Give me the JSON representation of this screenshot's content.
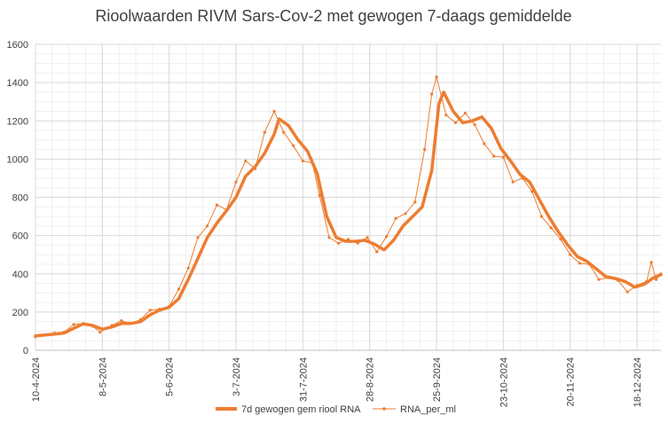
{
  "chart_data": {
    "type": "line",
    "title": "Rioolwaarden RIVM Sars-Cov-2 met gewogen 7-daags gemiddelde",
    "xlabel": "",
    "ylabel": "",
    "ylim": [
      0,
      1600
    ],
    "yticks": [
      0,
      200,
      400,
      600,
      800,
      1000,
      1200,
      1400,
      1600
    ],
    "xlim": [
      "2024-04-10",
      "2024-12-28"
    ],
    "x_tick_labels": [
      "10-4-2024",
      "8-5-2024",
      "5-6-2024",
      "3-7-2024",
      "31-7-2024",
      "28-8-2024",
      "25-9-2024",
      "23-10-2024",
      "20-11-2024",
      "18-12-2024"
    ],
    "grid": true,
    "legend_position": "bottom",
    "colors": {
      "smooth": "#ED7D31",
      "raw": "#ED7D31",
      "grid": "#D9D9D9",
      "minor_grid": "#EFEFEF",
      "text": "#404040"
    },
    "series": [
      {
        "name": "7d gewogen gem riool RNA",
        "style": "thick-line",
        "points": [
          [
            "2024-04-10",
            75
          ],
          [
            "2024-04-14",
            80
          ],
          [
            "2024-04-18",
            85
          ],
          [
            "2024-04-22",
            90
          ],
          [
            "2024-04-26",
            115
          ],
          [
            "2024-04-30",
            138
          ],
          [
            "2024-05-04",
            130
          ],
          [
            "2024-05-08",
            110
          ],
          [
            "2024-05-12",
            122
          ],
          [
            "2024-05-16",
            140
          ],
          [
            "2024-05-20",
            140
          ],
          [
            "2024-05-24",
            150
          ],
          [
            "2024-05-28",
            185
          ],
          [
            "2024-06-01",
            210
          ],
          [
            "2024-06-05",
            225
          ],
          [
            "2024-06-09",
            270
          ],
          [
            "2024-06-13",
            370
          ],
          [
            "2024-06-17",
            480
          ],
          [
            "2024-06-21",
            590
          ],
          [
            "2024-06-25",
            665
          ],
          [
            "2024-06-29",
            730
          ],
          [
            "2024-07-03",
            800
          ],
          [
            "2024-07-07",
            910
          ],
          [
            "2024-07-11",
            960
          ],
          [
            "2024-07-15",
            1030
          ],
          [
            "2024-07-19",
            1130
          ],
          [
            "2024-07-21",
            1210
          ],
          [
            "2024-07-25",
            1175
          ],
          [
            "2024-07-29",
            1100
          ],
          [
            "2024-08-02",
            1040
          ],
          [
            "2024-08-06",
            925
          ],
          [
            "2024-08-10",
            700
          ],
          [
            "2024-08-14",
            590
          ],
          [
            "2024-08-18",
            570
          ],
          [
            "2024-08-22",
            570
          ],
          [
            "2024-08-26",
            575
          ],
          [
            "2024-08-30",
            555
          ],
          [
            "2024-09-03",
            525
          ],
          [
            "2024-09-07",
            575
          ],
          [
            "2024-09-11",
            650
          ],
          [
            "2024-09-15",
            700
          ],
          [
            "2024-09-19",
            750
          ],
          [
            "2024-09-23",
            940
          ],
          [
            "2024-09-26",
            1290
          ],
          [
            "2024-09-28",
            1350
          ],
          [
            "2024-10-02",
            1250
          ],
          [
            "2024-10-06",
            1190
          ],
          [
            "2024-10-10",
            1200
          ],
          [
            "2024-10-14",
            1220
          ],
          [
            "2024-10-18",
            1160
          ],
          [
            "2024-10-22",
            1055
          ],
          [
            "2024-10-26",
            990
          ],
          [
            "2024-10-30",
            920
          ],
          [
            "2024-11-03",
            880
          ],
          [
            "2024-11-07",
            790
          ],
          [
            "2024-11-11",
            700
          ],
          [
            "2024-11-15",
            620
          ],
          [
            "2024-11-19",
            550
          ],
          [
            "2024-11-23",
            490
          ],
          [
            "2024-11-27",
            465
          ],
          [
            "2024-12-01",
            425
          ],
          [
            "2024-12-05",
            385
          ],
          [
            "2024-12-09",
            375
          ],
          [
            "2024-12-13",
            360
          ],
          [
            "2024-12-17",
            330
          ],
          [
            "2024-12-21",
            345
          ],
          [
            "2024-12-25",
            380
          ],
          [
            "2024-12-28",
            395
          ]
        ]
      },
      {
        "name": "RNA_per_ml",
        "style": "thin-line-markers",
        "points": [
          [
            "2024-04-10",
            70
          ],
          [
            "2024-04-14",
            80
          ],
          [
            "2024-04-18",
            90
          ],
          [
            "2024-04-22",
            95
          ],
          [
            "2024-04-26",
            135
          ],
          [
            "2024-04-30",
            140
          ],
          [
            "2024-05-04",
            125
          ],
          [
            "2024-05-07",
            95
          ],
          [
            "2024-05-12",
            130
          ],
          [
            "2024-05-16",
            155
          ],
          [
            "2024-05-20",
            140
          ],
          [
            "2024-05-24",
            160
          ],
          [
            "2024-05-28",
            210
          ],
          [
            "2024-06-01",
            215
          ],
          [
            "2024-06-05",
            230
          ],
          [
            "2024-06-09",
            320
          ],
          [
            "2024-06-13",
            430
          ],
          [
            "2024-06-17",
            590
          ],
          [
            "2024-06-21",
            650
          ],
          [
            "2024-06-25",
            760
          ],
          [
            "2024-06-29",
            735
          ],
          [
            "2024-07-03",
            880
          ],
          [
            "2024-07-07",
            990
          ],
          [
            "2024-07-11",
            950
          ],
          [
            "2024-07-15",
            1140
          ],
          [
            "2024-07-19",
            1250
          ],
          [
            "2024-07-23",
            1140
          ],
          [
            "2024-07-27",
            1070
          ],
          [
            "2024-07-31",
            990
          ],
          [
            "2024-08-04",
            980
          ],
          [
            "2024-08-07",
            810
          ],
          [
            "2024-08-11",
            590
          ],
          [
            "2024-08-15",
            560
          ],
          [
            "2024-08-19",
            580
          ],
          [
            "2024-08-23",
            560
          ],
          [
            "2024-08-27",
            590
          ],
          [
            "2024-08-31",
            515
          ],
          [
            "2024-09-04",
            595
          ],
          [
            "2024-09-08",
            690
          ],
          [
            "2024-09-12",
            715
          ],
          [
            "2024-09-16",
            775
          ],
          [
            "2024-09-20",
            1050
          ],
          [
            "2024-09-23",
            1340
          ],
          [
            "2024-09-25",
            1430
          ],
          [
            "2024-09-29",
            1230
          ],
          [
            "2024-10-03",
            1190
          ],
          [
            "2024-10-07",
            1240
          ],
          [
            "2024-10-11",
            1180
          ],
          [
            "2024-10-15",
            1080
          ],
          [
            "2024-10-19",
            1015
          ],
          [
            "2024-10-23",
            1010
          ],
          [
            "2024-10-27",
            880
          ],
          [
            "2024-10-31",
            900
          ],
          [
            "2024-11-04",
            830
          ],
          [
            "2024-11-08",
            700
          ],
          [
            "2024-11-12",
            640
          ],
          [
            "2024-11-16",
            580
          ],
          [
            "2024-11-20",
            500
          ],
          [
            "2024-11-24",
            455
          ],
          [
            "2024-11-28",
            450
          ],
          [
            "2024-12-02",
            370
          ],
          [
            "2024-12-06",
            380
          ],
          [
            "2024-12-10",
            365
          ],
          [
            "2024-12-14",
            305
          ],
          [
            "2024-12-18",
            340
          ],
          [
            "2024-12-22",
            360
          ],
          [
            "2024-12-24",
            460
          ],
          [
            "2024-12-26",
            370
          ],
          [
            "2024-12-28",
            400
          ]
        ]
      }
    ]
  }
}
